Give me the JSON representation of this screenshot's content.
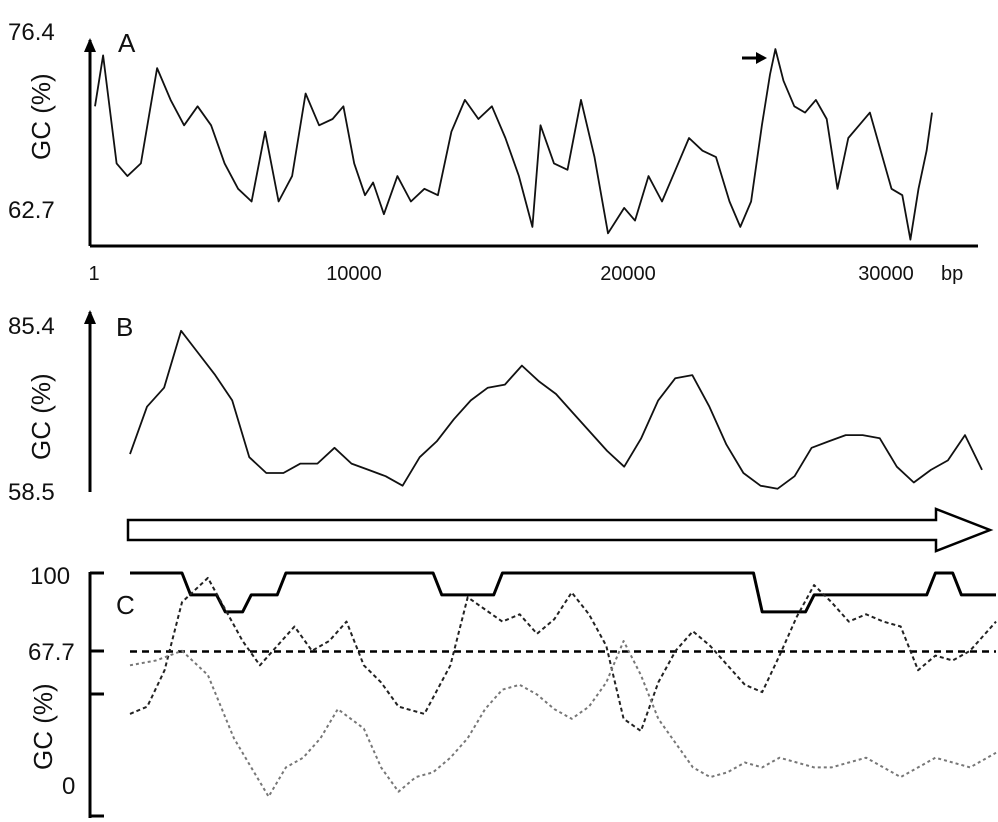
{
  "chart_data": [
    {
      "panel": "A",
      "type": "line",
      "ylabel": "GC (%)",
      "y_ticks": [
        "76.4",
        "62.7"
      ],
      "x_ticks": [
        "1",
        "10000",
        "20000",
        "30000"
      ],
      "x_unit": "bp",
      "xlim": [
        1,
        31000
      ],
      "ylim": [
        60.5,
        76.4
      ],
      "annotation": "arrow marking the maximum near 25200 bp",
      "series": [
        {
          "x": [
            1,
            300,
            800,
            1200,
            1700,
            2300,
            2800,
            3300,
            3800,
            4300,
            4800,
            5300,
            5800,
            6300,
            6800,
            7300,
            7800,
            8300,
            8800,
            9200,
            9600,
            10000,
            10300,
            10700,
            11200,
            11700,
            12200,
            12700,
            13200,
            13700,
            14200,
            14700,
            15200,
            15700,
            16200,
            16500,
            17000,
            17500,
            18000,
            18500,
            19000,
            19300,
            19600,
            20000,
            20500,
            21000,
            21500,
            22000,
            22500,
            23000,
            23500,
            23900,
            24300,
            24700,
            25000,
            25200,
            25500,
            25900,
            26300,
            26700,
            27100,
            27500,
            27900,
            28300,
            28700,
            29100,
            29500,
            29900,
            30200,
            30500,
            30800,
            31000
          ],
          "y": [
            71.5,
            75.5,
            67,
            66,
            67,
            74.5,
            72,
            70,
            71.5,
            70,
            67,
            65,
            64,
            69.5,
            64,
            66,
            72.5,
            70,
            70.5,
            71.5,
            67,
            64.5,
            65.5,
            63,
            66,
            64,
            65,
            64.5,
            69.5,
            72,
            70.5,
            71.5,
            69,
            66,
            62,
            70,
            67,
            66.5,
            72,
            67.5,
            61.5,
            62.5,
            63.5,
            62.5,
            66,
            64,
            66.5,
            69,
            68,
            67.5,
            64,
            62,
            64,
            70,
            74,
            76,
            73.5,
            71.5,
            71,
            72,
            70.5,
            65,
            69,
            70,
            71,
            68,
            65,
            64.5,
            61,
            65,
            68,
            71
          ]
        }
      ]
    },
    {
      "panel": "B",
      "type": "line",
      "ylabel": "GC (%)",
      "y_ticks": [
        "85.4",
        "58.5"
      ],
      "xlim": [
        0,
        100
      ],
      "ylim": [
        58.5,
        85.4
      ],
      "series": [
        {
          "x": [
            0,
            2,
            4,
            6,
            8,
            10,
            12,
            14,
            16,
            18,
            20,
            22,
            24,
            26,
            28,
            30,
            32,
            34,
            36,
            38,
            40,
            42,
            44,
            46,
            48,
            50,
            52,
            54,
            56,
            58,
            60,
            62,
            64,
            66,
            68,
            70,
            72,
            74,
            76,
            78,
            80,
            82,
            84,
            86,
            88,
            90,
            92,
            94,
            96,
            98,
            100
          ],
          "y": [
            64.5,
            72,
            75,
            84,
            80.5,
            77,
            73,
            64,
            61.5,
            61.5,
            63,
            63,
            65.5,
            63,
            62,
            61,
            59.5,
            64,
            66.5,
            70,
            73,
            75,
            75.5,
            78.5,
            76,
            74,
            71,
            68,
            65,
            62.5,
            67,
            73,
            76.5,
            77,
            72,
            66,
            61.5,
            59.5,
            59,
            61,
            65.5,
            66.5,
            67.5,
            67.5,
            67,
            62.5,
            60,
            62,
            63.5,
            67.5,
            62
          ]
        }
      ]
    },
    {
      "panel": "C",
      "type": "line",
      "ylabel": "GC (%)",
      "y_ticks": [
        "100",
        "67.7",
        "0"
      ],
      "xlim": [
        0,
        100
      ],
      "ylim": [
        0,
        100
      ],
      "reference_line": 67.7,
      "series": [
        {
          "style": "solid",
          "x": [
            0,
            6,
            7,
            10,
            11,
            13,
            14,
            17,
            18,
            35,
            36,
            42,
            43,
            72,
            73,
            78,
            79,
            92,
            93,
            95,
            96,
            100
          ],
          "y": [
            100,
            100,
            91,
            91,
            84,
            84,
            91,
            91,
            100,
            100,
            91,
            91,
            100,
            100,
            84,
            84,
            91,
            91,
            100,
            100,
            91,
            91
          ]
        },
        {
          "style": "dotted",
          "x": [
            0,
            2,
            4,
            6,
            9,
            11,
            13,
            15,
            17,
            19,
            21,
            23,
            25,
            27,
            29,
            31,
            34,
            37,
            39,
            41,
            43,
            45,
            47,
            49,
            51,
            53,
            55,
            57,
            59,
            61,
            63,
            65,
            67,
            69,
            71,
            73,
            75,
            77,
            79,
            81,
            83,
            85,
            87,
            89,
            91,
            93,
            95,
            97,
            100
          ],
          "y": [
            42,
            45,
            60,
            88,
            98,
            85,
            72,
            62,
            70,
            78,
            68,
            72,
            80,
            62,
            55,
            45,
            42,
            62,
            90,
            85,
            80,
            83,
            75,
            81,
            92,
            83,
            70,
            40,
            35,
            55,
            68,
            76,
            70,
            62,
            54,
            51,
            66,
            82,
            95,
            88,
            80,
            83,
            80,
            78,
            60,
            66,
            64,
            68,
            80
          ]
        },
        {
          "style": "gray-dotted",
          "x": [
            0,
            3,
            6,
            9,
            12,
            14,
            16,
            18,
            20,
            22,
            24,
            27,
            29,
            31,
            33,
            35,
            37,
            39,
            41,
            43,
            45,
            47,
            49,
            51,
            53,
            55,
            57,
            59,
            61,
            63,
            65,
            67,
            69,
            71,
            73,
            75,
            77,
            79,
            81,
            83,
            85,
            87,
            89,
            91,
            93,
            95,
            97,
            100
          ],
          "y": [
            62,
            64,
            68,
            58,
            32,
            20,
            8,
            20,
            24,
            32,
            44,
            36,
            20,
            10,
            16,
            18,
            24,
            32,
            44,
            52,
            54,
            50,
            44,
            40,
            45,
            55,
            72,
            58,
            40,
            30,
            20,
            16,
            18,
            22,
            20,
            24,
            22,
            20,
            20,
            22,
            24,
            20,
            16,
            20,
            24,
            22,
            20,
            26
          ]
        }
      ]
    }
  ]
}
